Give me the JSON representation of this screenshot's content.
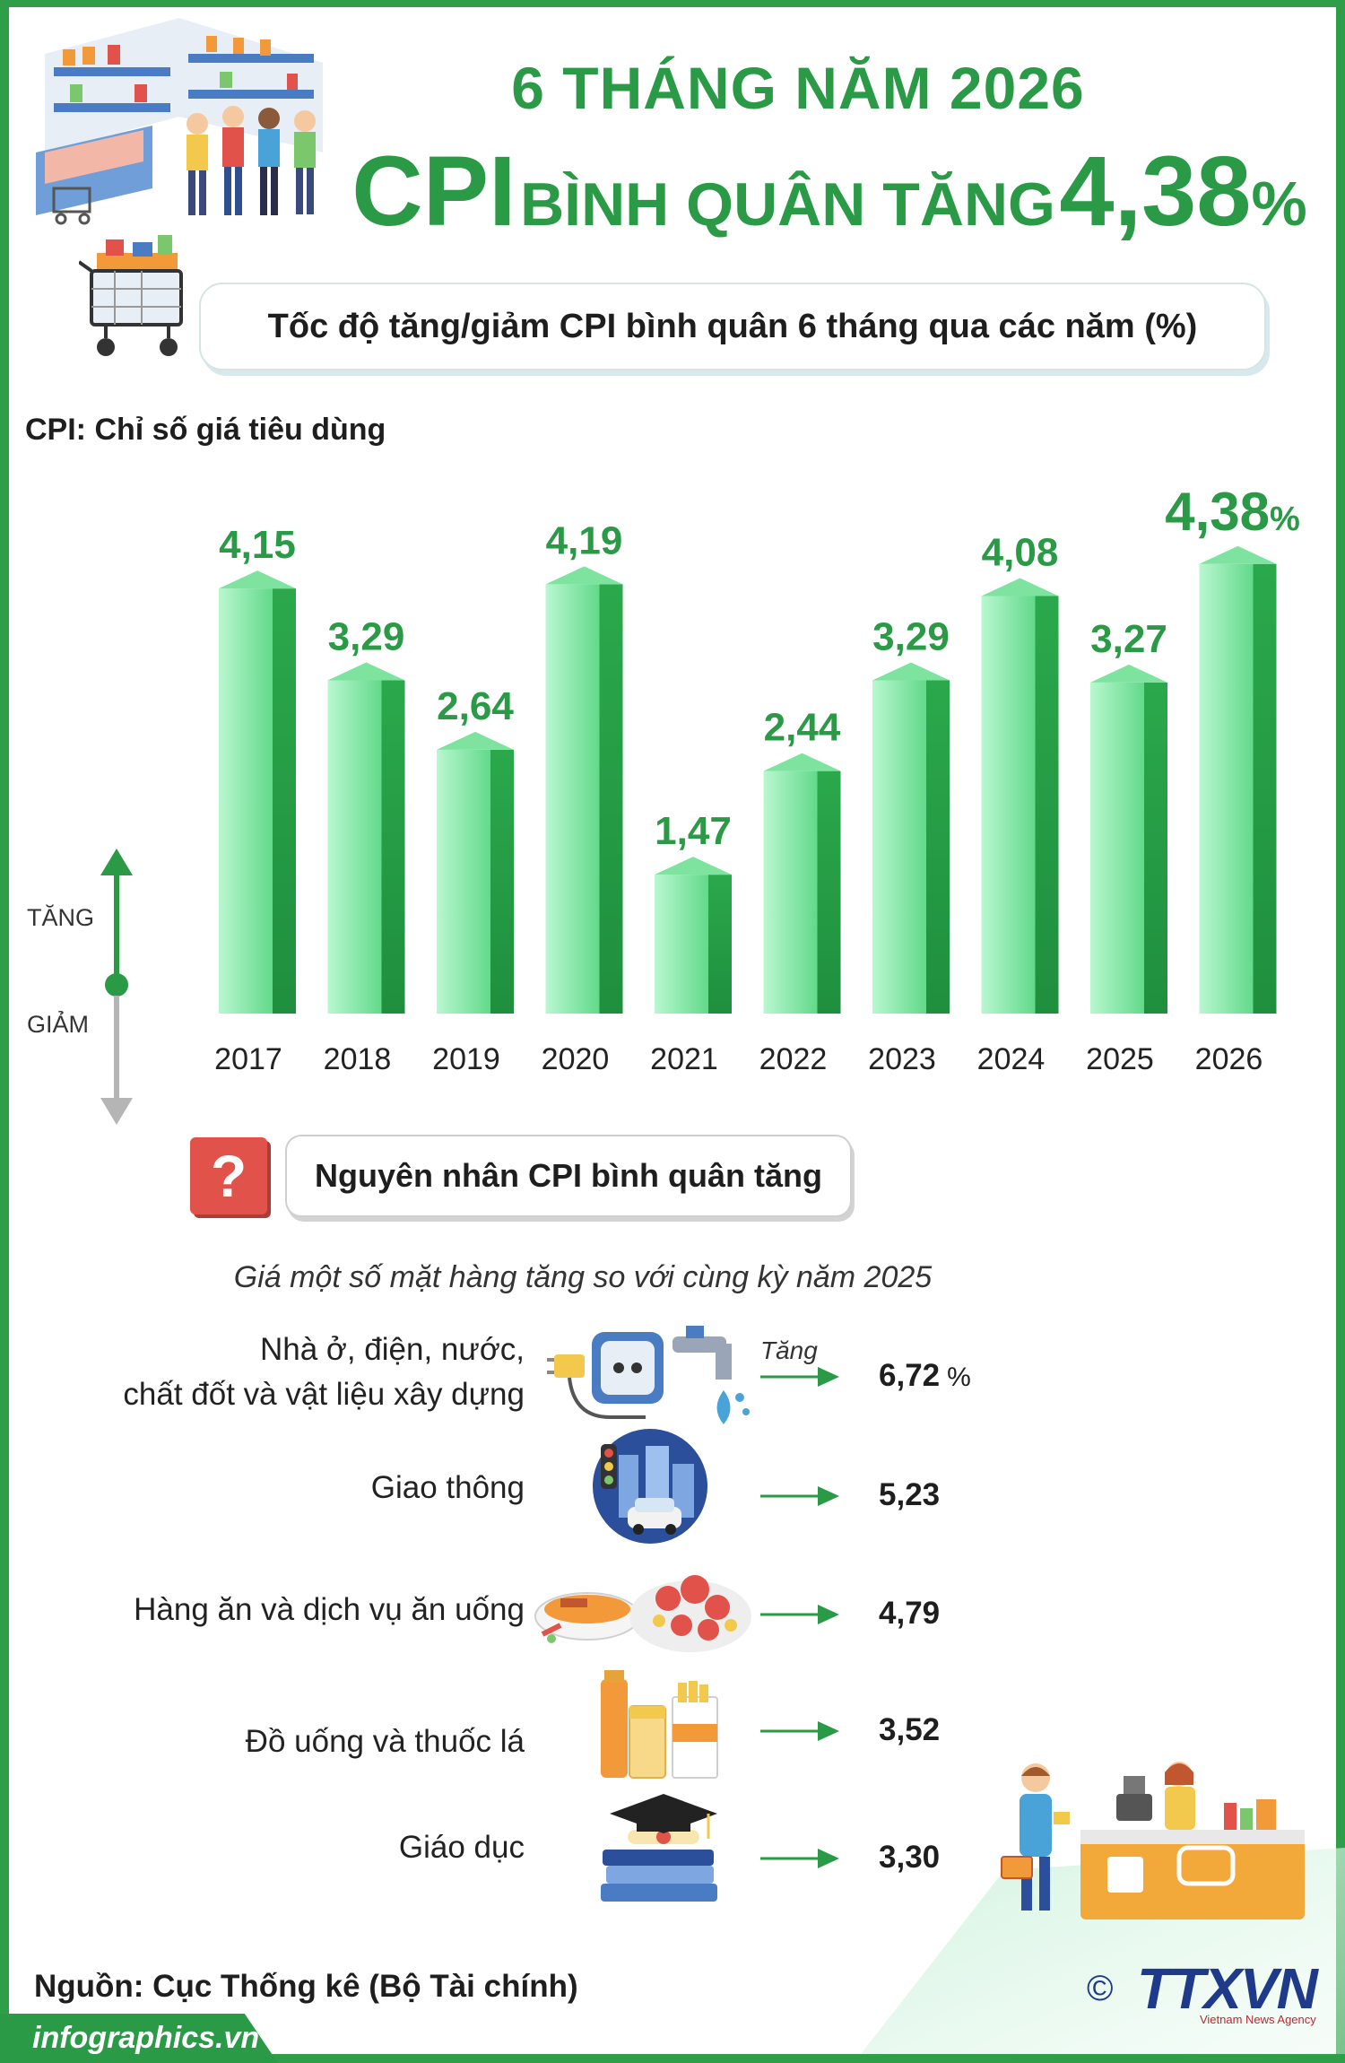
{
  "header": {
    "line1": "6 THÁNG NĂM 2026",
    "line2_cpi": "CPI",
    "line2_mid": "BÌNH QUÂN TĂNG",
    "line2_value": "4,38",
    "line2_pct": "%"
  },
  "subtitle": "Tốc độ tăng/giảm CPI bình quân 6 tháng qua các năm (%)",
  "cpi_note": "CPI: Chỉ số giá tiêu dùng",
  "axis_indicator": {
    "up": "TĂNG",
    "down": "GIẢM"
  },
  "chart_data": {
    "type": "bar",
    "categories": [
      "2017",
      "2018",
      "2019",
      "2020",
      "2021",
      "2022",
      "2023",
      "2024",
      "2025",
      "2026"
    ],
    "values": [
      4.15,
      3.29,
      2.64,
      4.19,
      1.47,
      2.44,
      3.29,
      4.08,
      3.27,
      4.38
    ],
    "labels": [
      "4,15",
      "3,29",
      "2,64",
      "4,19",
      "1,47",
      "2,44",
      "3,29",
      "4,08",
      "3,27",
      "4,38"
    ],
    "highlight_suffix": "%",
    "title": "Tốc độ tăng/giảm CPI bình quân 6 tháng qua các năm (%)",
    "xlabel": "",
    "ylabel": "",
    "colors": {
      "bar_light": "#8ff0b0",
      "bar_dark": "#2bb34f",
      "value": "#2a9a46"
    }
  },
  "reasons": {
    "title": "Nguyên nhân CPI bình quân tăng",
    "subtitle": "Giá một số mặt hàng tăng so với cùng kỳ năm 2025",
    "tang_label": "Tăng",
    "items": [
      {
        "label_line1": "Nhà ở, điện, nước,",
        "label_line2": "chất đốt và vật liệu xây dựng",
        "value": "6,72",
        "unit": "%",
        "icon": "house-utilities-icon"
      },
      {
        "label_line1": "Giao thông",
        "label_line2": "",
        "value": "5,23",
        "unit": "",
        "icon": "traffic-icon"
      },
      {
        "label_line1": "Hàng ăn và dịch vụ ăn uống",
        "label_line2": "",
        "value": "4,79",
        "unit": "",
        "icon": "food-icon"
      },
      {
        "label_line1": "Đồ uống và thuốc lá",
        "label_line2": "",
        "value": "3,52",
        "unit": "",
        "icon": "drinks-tobacco-icon"
      },
      {
        "label_line1": "Giáo dục",
        "label_line2": "",
        "value": "3,30",
        "unit": "",
        "icon": "education-icon"
      }
    ]
  },
  "footer": {
    "source": "Nguồn: Cục Thống kê (Bộ Tài chính)",
    "website": "infographics.vn",
    "copyright": "©",
    "logo": "TTXVN",
    "logo_sub": "Vietnam News Agency"
  }
}
